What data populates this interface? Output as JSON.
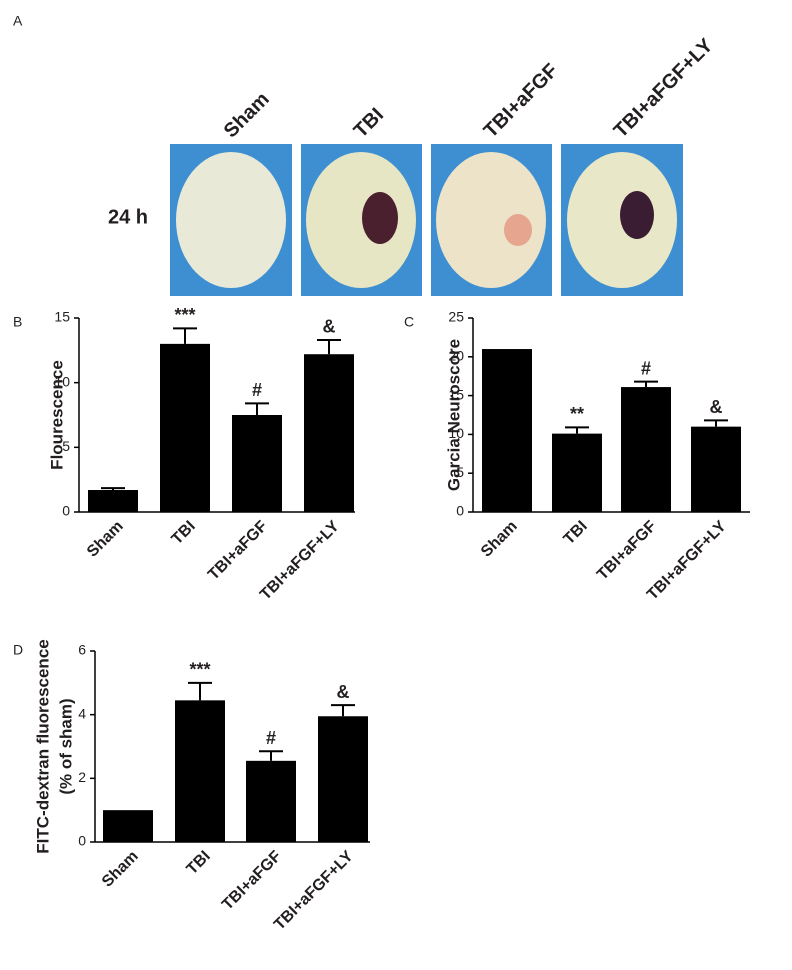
{
  "panel_a": {
    "label": "A",
    "columns": [
      "Sham",
      "TBI",
      "TBI+aFGF",
      "TBI+aFGF+LY"
    ],
    "row_label": "24 h"
  },
  "chart_data": [
    {
      "type": "bar",
      "label": "B",
      "ylabel": [
        "Flourescence"
      ],
      "categories": [
        "Sham",
        "TBI",
        "TBI+aFGF",
        "TBI+aFGF+LY"
      ],
      "values": [
        1.7,
        13.0,
        7.5,
        12.2
      ],
      "errors": [
        0.15,
        1.2,
        0.9,
        1.1
      ],
      "annotations": [
        null,
        "***",
        "#",
        "&"
      ],
      "color": "#000000",
      "ylim": [
        0,
        15
      ],
      "yticks": [
        0,
        5,
        10,
        15
      ]
    },
    {
      "type": "bar",
      "label": "C",
      "ylabel": [
        "Garcia Neuroscore"
      ],
      "categories": [
        "Sham",
        "TBI",
        "TBI+aFGF",
        "TBI+aFGF+LY"
      ],
      "values": [
        21,
        10.1,
        16.1,
        11
      ],
      "errors": [
        0,
        0.8,
        0.7,
        0.8
      ],
      "annotations": [
        null,
        "**",
        "#",
        "&"
      ],
      "color": "#000000",
      "ylim": [
        0,
        25
      ],
      "yticks": [
        0,
        5,
        10,
        15,
        20,
        25
      ]
    },
    {
      "type": "bar",
      "label": "D",
      "ylabel": [
        "FITC-dextran fluorescence",
        "(% of sham)"
      ],
      "categories": [
        "Sham",
        "TBI",
        "TBI+aFGF",
        "TBI+aFGF+LY"
      ],
      "values": [
        1.0,
        4.45,
        2.55,
        3.95
      ],
      "errors": [
        0,
        0.55,
        0.3,
        0.35
      ],
      "annotations": [
        null,
        "***",
        "#",
        "&"
      ],
      "color": "#000000",
      "ylim": [
        0,
        6
      ],
      "yticks": [
        0,
        2,
        4,
        6
      ]
    }
  ]
}
